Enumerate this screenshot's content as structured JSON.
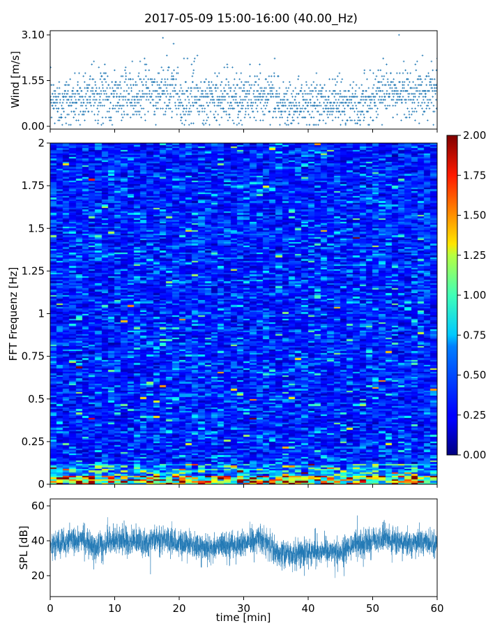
{
  "title": "2017-05-09 15:00-16:00 (40.00_Hz)",
  "chart_data": [
    {
      "type": "scatter",
      "panel": "wind",
      "title": "2017-05-09 15:00-16:00 (40.00_Hz)",
      "ylabel": "Wind [m/s]",
      "xlabel": "",
      "xlim": [
        0,
        60
      ],
      "ylim": [
        0,
        3.2
      ],
      "yticks": [
        0.0,
        1.55,
        3.1
      ],
      "ytick_labels": [
        "0.00",
        "1.55",
        "3.10"
      ],
      "xticks": [
        0,
        10,
        20,
        30,
        40,
        50,
        60
      ],
      "marker": "+",
      "color": "#1f77b4",
      "sample_interval_min": 0.1,
      "segments": [
        {
          "t": [
            0,
            5
          ],
          "mean": 0.85,
          "max": 2.0
        },
        {
          "t": [
            5,
            10
          ],
          "mean": 1.05,
          "max": 2.3
        },
        {
          "t": [
            10,
            15
          ],
          "mean": 1.05,
          "max": 2.3
        },
        {
          "t": [
            15,
            20
          ],
          "mean": 1.15,
          "max": 3.0
        },
        {
          "t": [
            20,
            25
          ],
          "mean": 0.85,
          "max": 2.6
        },
        {
          "t": [
            25,
            30
          ],
          "mean": 0.9,
          "max": 2.1
        },
        {
          "t": [
            30,
            35
          ],
          "mean": 1.0,
          "max": 2.3
        },
        {
          "t": [
            35,
            40
          ],
          "mean": 0.75,
          "max": 1.8
        },
        {
          "t": [
            40,
            45
          ],
          "mean": 0.8,
          "max": 1.8
        },
        {
          "t": [
            45,
            50
          ],
          "mean": 0.75,
          "max": 2.0
        },
        {
          "t": [
            50,
            55
          ],
          "mean": 1.2,
          "max": 3.1
        },
        {
          "t": [
            55,
            60
          ],
          "mean": 1.1,
          "max": 2.4
        }
      ]
    },
    {
      "type": "heatmap",
      "panel": "spectrogram",
      "ylabel": "FFT Frequenz [Hz]",
      "xlabel": "",
      "xlim": [
        0,
        60
      ],
      "ylim": [
        0,
        2
      ],
      "yticks": [
        0,
        0.25,
        0.5,
        0.75,
        1,
        1.25,
        1.5,
        1.75,
        2
      ],
      "ytick_labels": [
        "0",
        "0.25",
        "0.5",
        "0.75",
        "1",
        "1.25",
        "1.5",
        "1.75",
        "2"
      ],
      "colormap": "jet",
      "clim": [
        0,
        2
      ],
      "time_bins": 60,
      "freq_bins": 200,
      "background_level": 0.3,
      "low_frequency_level": 1.2,
      "colorbar": {
        "ticks": [
          0.0,
          0.25,
          0.5,
          0.75,
          1.0,
          1.25,
          1.5,
          1.75,
          2.0
        ],
        "tick_labels": [
          "0.00",
          "0.25",
          "0.50",
          "0.75",
          "1.00",
          "1.25",
          "1.50",
          "1.75",
          "2.00"
        ]
      }
    },
    {
      "type": "line",
      "panel": "spl",
      "ylabel": "SPL [dB]",
      "xlabel": "time [min]",
      "xlim": [
        0,
        60
      ],
      "ylim": [
        8,
        64
      ],
      "yticks": [
        20,
        40,
        60
      ],
      "ytick_labels": [
        "20",
        "40",
        "60"
      ],
      "xticks": [
        0,
        10,
        20,
        30,
        40,
        50,
        60
      ],
      "xtick_labels": [
        "0",
        "10",
        "20",
        "30",
        "40",
        "50",
        "60"
      ],
      "color": "#1f77b4",
      "trend": [
        {
          "t": 0,
          "db": 37
        },
        {
          "t": 5,
          "db": 41
        },
        {
          "t": 7,
          "db": 36
        },
        {
          "t": 10,
          "db": 40
        },
        {
          "t": 15,
          "db": 39
        },
        {
          "t": 17,
          "db": 42
        },
        {
          "t": 20,
          "db": 38
        },
        {
          "t": 25,
          "db": 36
        },
        {
          "t": 30,
          "db": 38
        },
        {
          "t": 33,
          "db": 41
        },
        {
          "t": 35,
          "db": 33
        },
        {
          "t": 38,
          "db": 32
        },
        {
          "t": 40,
          "db": 34
        },
        {
          "t": 43,
          "db": 34
        },
        {
          "t": 45,
          "db": 33
        },
        {
          "t": 47,
          "db": 38
        },
        {
          "t": 50,
          "db": 40
        },
        {
          "t": 52,
          "db": 42
        },
        {
          "t": 55,
          "db": 38
        },
        {
          "t": 58,
          "db": 40
        },
        {
          "t": 60,
          "db": 38
        }
      ],
      "spread_db": 7
    }
  ]
}
